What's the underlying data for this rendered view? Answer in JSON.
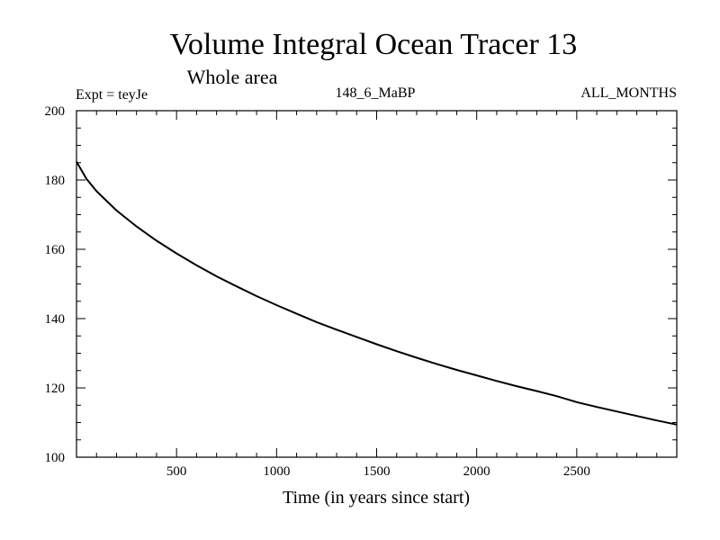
{
  "chart_data": {
    "type": "line",
    "title": "Volume Integral Ocean Tracer 13",
    "subtitle": "Whole area",
    "header_left": "Expt = teyJe",
    "header_center": "148_6_MaBP",
    "header_right": "ALL_MONTHS",
    "xlabel": "Time (in years since start)",
    "ylabel": "",
    "xlim": [
      0,
      3000
    ],
    "ylim": [
      100,
      200
    ],
    "x_ticks": [
      500,
      1000,
      1500,
      2000,
      2500
    ],
    "y_ticks": [
      100,
      120,
      140,
      160,
      180,
      200
    ],
    "x_minor_step": 100,
    "y_minor_step": 5,
    "grid": false,
    "legend": "none",
    "line_color": "#000000",
    "series": [
      {
        "x": [
          0,
          50,
          100,
          200,
          300,
          400,
          500,
          600,
          700,
          800,
          900,
          1000,
          1100,
          1200,
          1300,
          1400,
          1500,
          1600,
          1700,
          1800,
          1900,
          2000,
          2100,
          2200,
          2300,
          2400,
          2500,
          2600,
          2700,
          2800,
          2900,
          3000
        ],
        "values": [
          185.3,
          180.3,
          176.8,
          171.2,
          166.6,
          162.5,
          158.8,
          155.4,
          152.2,
          149.3,
          146.5,
          143.9,
          141.4,
          139.0,
          136.8,
          134.7,
          132.6,
          130.6,
          128.7,
          126.9,
          125.2,
          123.6,
          122.0,
          120.5,
          119.1,
          117.6,
          115.9,
          114.5,
          113.2,
          111.9,
          110.6,
          109.4
        ]
      }
    ]
  }
}
